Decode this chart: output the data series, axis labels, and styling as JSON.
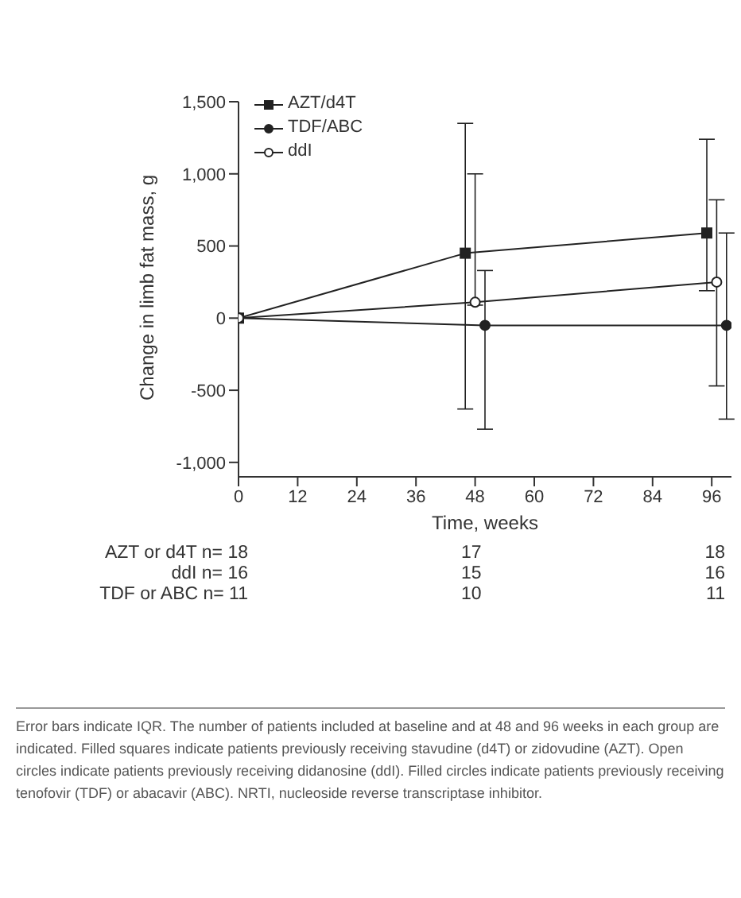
{
  "chart_data": {
    "type": "line",
    "xlabel": "Time, weeks",
    "ylabel": "Change in limb fat mass, g",
    "xlim": [
      0,
      100
    ],
    "xticks": [
      0,
      12,
      24,
      36,
      48,
      60,
      72,
      84,
      96
    ],
    "ylim": [
      -1100,
      1500
    ],
    "yticks": [
      {
        "value": -1000,
        "label": "-1,000"
      },
      {
        "value": -500,
        "label": "-500"
      },
      0,
      {
        "value": 500,
        "label": "500"
      },
      {
        "value": 1000,
        "label": "1,000"
      },
      {
        "value": 1500,
        "label": "1,500"
      }
    ],
    "series": [
      {
        "name": "AZT/d4T",
        "color": "#222222",
        "marker": "square",
        "x": [
          0,
          46,
          95
        ],
        "values": [
          0,
          450,
          590
        ],
        "errors": [
          null,
          [
            -630,
            1350
          ],
          [
            190,
            1240
          ]
        ]
      },
      {
        "name": "TDF/ABC",
        "color": "#222222",
        "marker": "circle",
        "x": [
          0,
          50,
          99
        ],
        "values": [
          0,
          -50,
          -50
        ],
        "errors": [
          null,
          [
            -770,
            330
          ],
          [
            -700,
            590
          ]
        ]
      },
      {
        "name": "ddI",
        "color": "#222222",
        "colors": [
          "#ffffff",
          "#ffffff",
          "#ffffff"
        ],
        "marker": "circle",
        "x": [
          0,
          48,
          97
        ],
        "values": [
          0,
          110,
          250
        ],
        "errors": [
          null,
          [
            90,
            1000
          ],
          [
            -470,
            820
          ]
        ]
      }
    ],
    "legend": "top left",
    "grid": false,
    "annotations": [
      "AZT or d4T n= 18",
      "17",
      "18",
      "ddI n= 16",
      "15",
      "16",
      "TDF or ABC n= 11",
      "10",
      "11",
      "Error bars indicate IQR. The number of patients included at baseline and at 48 and 96 weeks in each group are indicated. Filled squares indicate patients previously receiving stavudine (d4T) or zidovudine (AZT). Open circles indicate patients previously receiving didanosine (ddI). Filled circles indicate patients previously receiving tenofovir (TDF) or abacavir (ABC). NRTI, nucleoside reverse transcriptase inhibitor."
    ]
  }
}
